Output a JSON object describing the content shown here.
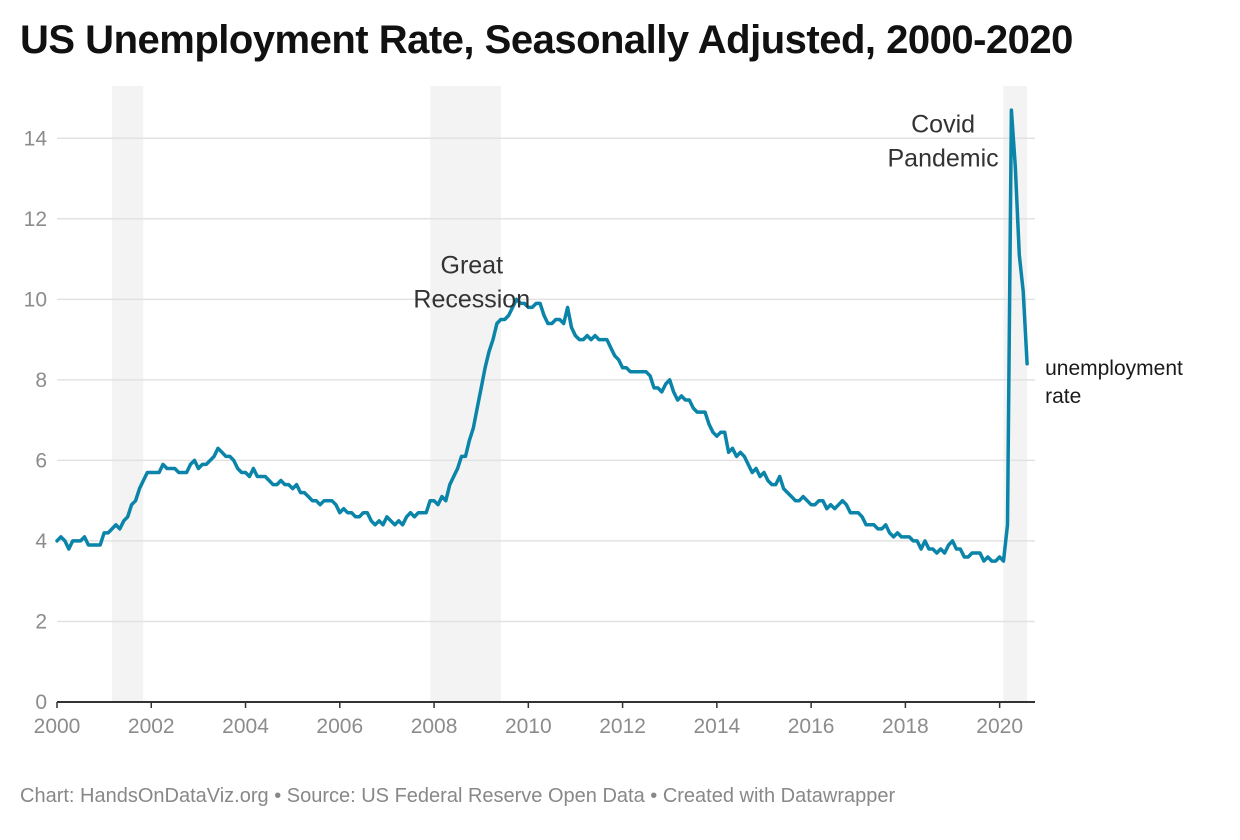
{
  "chart_data": {
    "type": "line",
    "title": "US Unemployment Rate, Seasonally Adjusted, 2000-2020",
    "xlabel": "",
    "ylabel": "",
    "x_range": [
      2000,
      2020.75
    ],
    "ylim": [
      0,
      15
    ],
    "y_ticks": [
      0,
      2,
      4,
      6,
      8,
      10,
      12,
      14
    ],
    "x_ticks": [
      2000,
      2002,
      2004,
      2006,
      2008,
      2010,
      2012,
      2014,
      2016,
      2018,
      2020
    ],
    "grid": true,
    "shaded_periods": [
      {
        "start": 2001.17,
        "end": 2001.83
      },
      {
        "start": 2007.92,
        "end": 2009.42
      },
      {
        "start": 2020.08,
        "end": 2020.58
      }
    ],
    "annotations": [
      {
        "text_lines": [
          "Great",
          "Recession"
        ],
        "x": 2008.8,
        "y": 9.8
      },
      {
        "text_lines": [
          "Covid",
          "Pandemic"
        ],
        "x": 2018.8,
        "y": 13.3
      }
    ],
    "series": [
      {
        "name": "unemployment rate",
        "color": "#0a84a8",
        "start": 2000.0,
        "step": 0.08333,
        "values": [
          4.0,
          4.1,
          4.0,
          3.8,
          4.0,
          4.0,
          4.0,
          4.1,
          3.9,
          3.9,
          3.9,
          3.9,
          4.2,
          4.2,
          4.3,
          4.4,
          4.3,
          4.5,
          4.6,
          4.9,
          5.0,
          5.3,
          5.5,
          5.7,
          5.7,
          5.7,
          5.7,
          5.9,
          5.8,
          5.8,
          5.8,
          5.7,
          5.7,
          5.7,
          5.9,
          6.0,
          5.8,
          5.9,
          5.9,
          6.0,
          6.1,
          6.3,
          6.2,
          6.1,
          6.1,
          6.0,
          5.8,
          5.7,
          5.7,
          5.6,
          5.8,
          5.6,
          5.6,
          5.6,
          5.5,
          5.4,
          5.4,
          5.5,
          5.4,
          5.4,
          5.3,
          5.4,
          5.2,
          5.2,
          5.1,
          5.0,
          5.0,
          4.9,
          5.0,
          5.0,
          5.0,
          4.9,
          4.7,
          4.8,
          4.7,
          4.7,
          4.6,
          4.6,
          4.7,
          4.7,
          4.5,
          4.4,
          4.5,
          4.4,
          4.6,
          4.5,
          4.4,
          4.5,
          4.4,
          4.6,
          4.7,
          4.6,
          4.7,
          4.7,
          4.7,
          5.0,
          5.0,
          4.9,
          5.1,
          5.0,
          5.4,
          5.6,
          5.8,
          6.1,
          6.1,
          6.5,
          6.8,
          7.3,
          7.8,
          8.3,
          8.7,
          9.0,
          9.4,
          9.5,
          9.5,
          9.6,
          9.8,
          10.0,
          9.9,
          9.9,
          9.8,
          9.8,
          9.9,
          9.9,
          9.6,
          9.4,
          9.4,
          9.5,
          9.5,
          9.4,
          9.8,
          9.3,
          9.1,
          9.0,
          9.0,
          9.1,
          9.0,
          9.1,
          9.0,
          9.0,
          9.0,
          8.8,
          8.6,
          8.5,
          8.3,
          8.3,
          8.2,
          8.2,
          8.2,
          8.2,
          8.2,
          8.1,
          7.8,
          7.8,
          7.7,
          7.9,
          8.0,
          7.7,
          7.5,
          7.6,
          7.5,
          7.5,
          7.3,
          7.2,
          7.2,
          7.2,
          6.9,
          6.7,
          6.6,
          6.7,
          6.7,
          6.2,
          6.3,
          6.1,
          6.2,
          6.1,
          5.9,
          5.7,
          5.8,
          5.6,
          5.7,
          5.5,
          5.4,
          5.4,
          5.6,
          5.3,
          5.2,
          5.1,
          5.0,
          5.0,
          5.1,
          5.0,
          4.9,
          4.9,
          5.0,
          5.0,
          4.8,
          4.9,
          4.8,
          4.9,
          5.0,
          4.9,
          4.7,
          4.7,
          4.7,
          4.6,
          4.4,
          4.4,
          4.4,
          4.3,
          4.3,
          4.4,
          4.2,
          4.1,
          4.2,
          4.1,
          4.1,
          4.1,
          4.0,
          4.0,
          3.8,
          4.0,
          3.8,
          3.8,
          3.7,
          3.8,
          3.7,
          3.9,
          4.0,
          3.8,
          3.8,
          3.6,
          3.6,
          3.7,
          3.7,
          3.7,
          3.5,
          3.6,
          3.5,
          3.5,
          3.6,
          3.5,
          4.4,
          14.7,
          13.3,
          11.1,
          10.2,
          8.4
        ]
      }
    ]
  },
  "footer": {
    "text": "Chart: HandsOnDataViz.org • Source: US Federal Reserve Open Data • Created with Datawrapper"
  },
  "colors": {
    "line": "#0a84a8",
    "shade": "#f3f3f3",
    "grid": "#e2e2e2",
    "tick_text": "#8c8c8c",
    "annotation_text": "#333333"
  }
}
